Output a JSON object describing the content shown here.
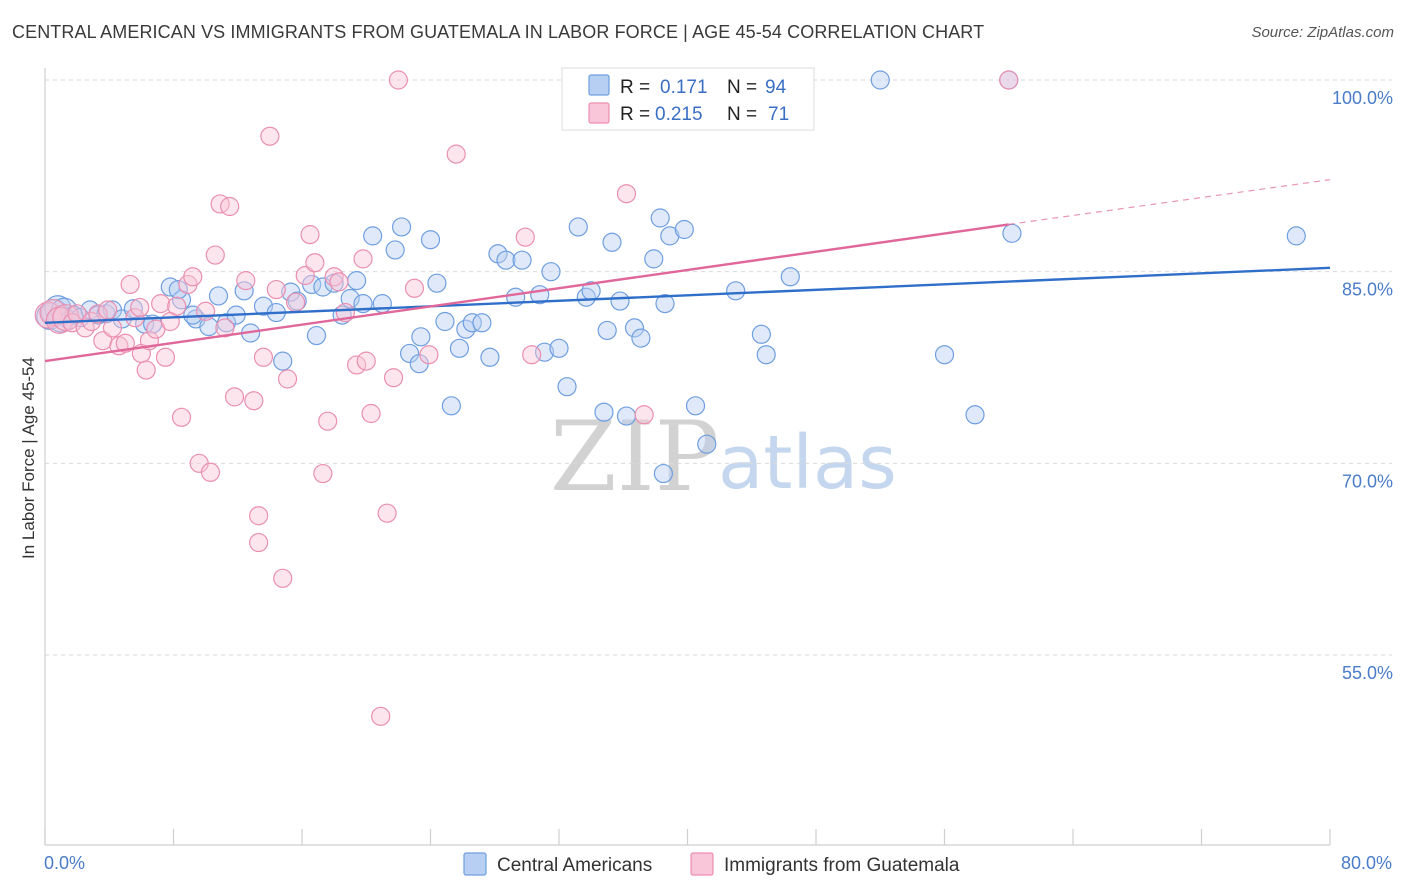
{
  "title": "CENTRAL AMERICAN VS IMMIGRANTS FROM GUATEMALA IN LABOR FORCE | AGE 45-54 CORRELATION CHART",
  "source": "Source: ZipAtlas.com",
  "watermark": {
    "zip": "ZIP",
    "atlas": "atlas"
  },
  "legend_box": {
    "rows": [
      {
        "r_label": "R =",
        "r_value": "0.171",
        "n_label": "N =",
        "n_value": "94"
      },
      {
        "r_label": "R =",
        "r_value": "0.215",
        "n_label": "N =",
        "n_value": "71"
      }
    ]
  },
  "chart_data": {
    "type": "scatter",
    "title": "CENTRAL AMERICAN VS IMMIGRANTS FROM GUATEMALA IN LABOR FORCE | AGE 45-54 CORRELATION CHART",
    "xlabel": "",
    "ylabel": "In Labor Force | Age 45-54",
    "xlim": [
      0,
      80
    ],
    "ylim": [
      40,
      103
    ],
    "x_tick_labels": [
      "0.0%",
      "80.0%"
    ],
    "y_ticks": [
      55,
      70,
      85,
      100
    ],
    "y_tick_labels": [
      "55.0%",
      "70.0%",
      "85.0%",
      "100.0%"
    ],
    "grid": true,
    "legend_placement": "bottom-center",
    "series": [
      {
        "name": "Central Americans",
        "color": "#6f9fe0",
        "fill": "#b7cff2",
        "line_color": "#2f6fc9",
        "r": 0.171,
        "n": 94,
        "trend": {
          "x0": 0,
          "y0": 81.0,
          "x1": 80,
          "y1": 85.3
        },
        "points": [
          [
            0.3,
            81.5
          ],
          [
            0.6,
            81.8
          ],
          [
            0.8,
            82.1
          ],
          [
            1.0,
            81.3
          ],
          [
            1.2,
            81.9
          ],
          [
            1.5,
            81.2
          ],
          [
            1.8,
            81.6
          ],
          [
            2.2,
            81.4
          ],
          [
            2.8,
            82.0
          ],
          [
            3.3,
            81.6
          ],
          [
            3.8,
            81.7
          ],
          [
            4.2,
            82.0
          ],
          [
            4.8,
            81.3
          ],
          [
            5.5,
            82.1
          ],
          [
            6.2,
            80.9
          ],
          [
            6.7,
            80.9
          ],
          [
            7.8,
            83.8
          ],
          [
            8.5,
            82.8
          ],
          [
            8.3,
            83.6
          ],
          [
            9.4,
            81.3
          ],
          [
            9.2,
            81.6
          ],
          [
            10.2,
            80.7
          ],
          [
            10.8,
            83.1
          ],
          [
            11.3,
            81.0
          ],
          [
            11.9,
            81.6
          ],
          [
            12.4,
            83.5
          ],
          [
            12.8,
            80.2
          ],
          [
            13.6,
            82.3
          ],
          [
            14.4,
            81.8
          ],
          [
            14.8,
            78.0
          ],
          [
            15.3,
            83.4
          ],
          [
            15.7,
            82.7
          ],
          [
            16.6,
            84.0
          ],
          [
            16.9,
            80.0
          ],
          [
            17.3,
            83.8
          ],
          [
            18.0,
            84.1
          ],
          [
            18.5,
            81.6
          ],
          [
            19.0,
            82.9
          ],
          [
            19.4,
            84.3
          ],
          [
            19.8,
            82.5
          ],
          [
            20.4,
            87.8
          ],
          [
            21.0,
            82.5
          ],
          [
            21.8,
            86.7
          ],
          [
            22.2,
            88.5
          ],
          [
            22.7,
            78.6
          ],
          [
            23.3,
            77.8
          ],
          [
            23.4,
            79.9
          ],
          [
            24.0,
            87.5
          ],
          [
            24.4,
            84.1
          ],
          [
            24.9,
            81.1
          ],
          [
            25.3,
            74.5
          ],
          [
            25.8,
            79.0
          ],
          [
            26.2,
            80.5
          ],
          [
            26.6,
            81.0
          ],
          [
            27.2,
            81.0
          ],
          [
            27.7,
            78.3
          ],
          [
            28.2,
            86.4
          ],
          [
            28.7,
            85.9
          ],
          [
            29.3,
            83.0
          ],
          [
            29.7,
            85.9
          ],
          [
            30.8,
            83.2
          ],
          [
            31.1,
            78.7
          ],
          [
            31.5,
            85.0
          ],
          [
            32.0,
            79.0
          ],
          [
            32.5,
            76.0
          ],
          [
            33.2,
            88.5
          ],
          [
            33.7,
            83.0
          ],
          [
            34.0,
            83.5
          ],
          [
            34.8,
            74.0
          ],
          [
            35.0,
            80.4
          ],
          [
            35.3,
            87.3
          ],
          [
            35.8,
            82.7
          ],
          [
            36.2,
            73.7
          ],
          [
            36.7,
            80.6
          ],
          [
            37.1,
            79.8
          ],
          [
            37.9,
            86.0
          ],
          [
            38.3,
            89.2
          ],
          [
            38.6,
            82.5
          ],
          [
            38.5,
            69.2
          ],
          [
            38.9,
            87.8
          ],
          [
            39.8,
            88.3
          ],
          [
            40.5,
            74.5
          ],
          [
            41.2,
            71.5
          ],
          [
            43.0,
            83.5
          ],
          [
            44.6,
            80.1
          ],
          [
            44.9,
            78.5
          ],
          [
            46.4,
            84.6
          ],
          [
            56.0,
            78.5
          ],
          [
            57.9,
            73.8
          ],
          [
            60.0,
            100.0
          ],
          [
            60.2,
            88.0
          ],
          [
            77.9,
            87.8
          ],
          [
            52.0,
            100.0
          ],
          [
            43.0,
            100.0
          ]
        ]
      },
      {
        "name": "Immigrants from Guatemala",
        "color": "#ea8fb1",
        "fill": "#f8c6d8",
        "line_color": "#e0679a",
        "r": 0.215,
        "n": 71,
        "trend": {
          "x0": 0,
          "y0": 78.0,
          "x1": 60,
          "y1": 88.7
        },
        "trend_dashed": {
          "x0": 60,
          "y0": 88.7,
          "x1": 80,
          "y1": 92.2
        },
        "points": [
          [
            0.2,
            81.6
          ],
          [
            0.5,
            81.8
          ],
          [
            0.9,
            81.2
          ],
          [
            1.3,
            81.4
          ],
          [
            1.7,
            81.0
          ],
          [
            2.0,
            81.7
          ],
          [
            2.5,
            80.6
          ],
          [
            2.9,
            81.1
          ],
          [
            3.3,
            81.7
          ],
          [
            3.6,
            79.6
          ],
          [
            3.9,
            82.0
          ],
          [
            4.2,
            80.6
          ],
          [
            4.6,
            79.2
          ],
          [
            5.0,
            79.4
          ],
          [
            5.3,
            84.0
          ],
          [
            5.6,
            81.4
          ],
          [
            5.9,
            82.2
          ],
          [
            6.0,
            78.6
          ],
          [
            6.3,
            77.3
          ],
          [
            6.5,
            79.6
          ],
          [
            6.9,
            80.5
          ],
          [
            7.2,
            82.5
          ],
          [
            7.5,
            78.3
          ],
          [
            7.8,
            81.1
          ],
          [
            8.2,
            82.3
          ],
          [
            8.5,
            73.6
          ],
          [
            8.9,
            84.0
          ],
          [
            9.2,
            84.6
          ],
          [
            9.6,
            70.0
          ],
          [
            10.0,
            81.9
          ],
          [
            10.3,
            69.3
          ],
          [
            10.6,
            86.3
          ],
          [
            10.9,
            90.3
          ],
          [
            11.2,
            80.6
          ],
          [
            11.5,
            90.1
          ],
          [
            11.8,
            75.2
          ],
          [
            12.5,
            84.3
          ],
          [
            13.0,
            74.9
          ],
          [
            13.3,
            65.9
          ],
          [
            13.3,
            63.8
          ],
          [
            13.6,
            78.3
          ],
          [
            14.0,
            95.6
          ],
          [
            14.4,
            83.6
          ],
          [
            14.8,
            61.0
          ],
          [
            15.1,
            76.6
          ],
          [
            15.6,
            82.6
          ],
          [
            16.2,
            84.7
          ],
          [
            16.5,
            87.9
          ],
          [
            16.8,
            85.7
          ],
          [
            17.3,
            69.2
          ],
          [
            17.6,
            73.3
          ],
          [
            18.0,
            84.6
          ],
          [
            18.3,
            84.2
          ],
          [
            18.7,
            81.8
          ],
          [
            19.4,
            77.7
          ],
          [
            19.8,
            86.0
          ],
          [
            20.0,
            78.0
          ],
          [
            20.3,
            73.9
          ],
          [
            20.9,
            50.2
          ],
          [
            21.3,
            66.1
          ],
          [
            21.7,
            76.7
          ],
          [
            22.0,
            100.0
          ],
          [
            23.0,
            83.7
          ],
          [
            23.9,
            78.5
          ],
          [
            25.6,
            94.2
          ],
          [
            29.9,
            87.7
          ],
          [
            30.3,
            78.5
          ],
          [
            33.8,
            100.0
          ],
          [
            36.2,
            91.1
          ],
          [
            37.3,
            73.8
          ],
          [
            60.0,
            100.0
          ]
        ]
      }
    ]
  }
}
